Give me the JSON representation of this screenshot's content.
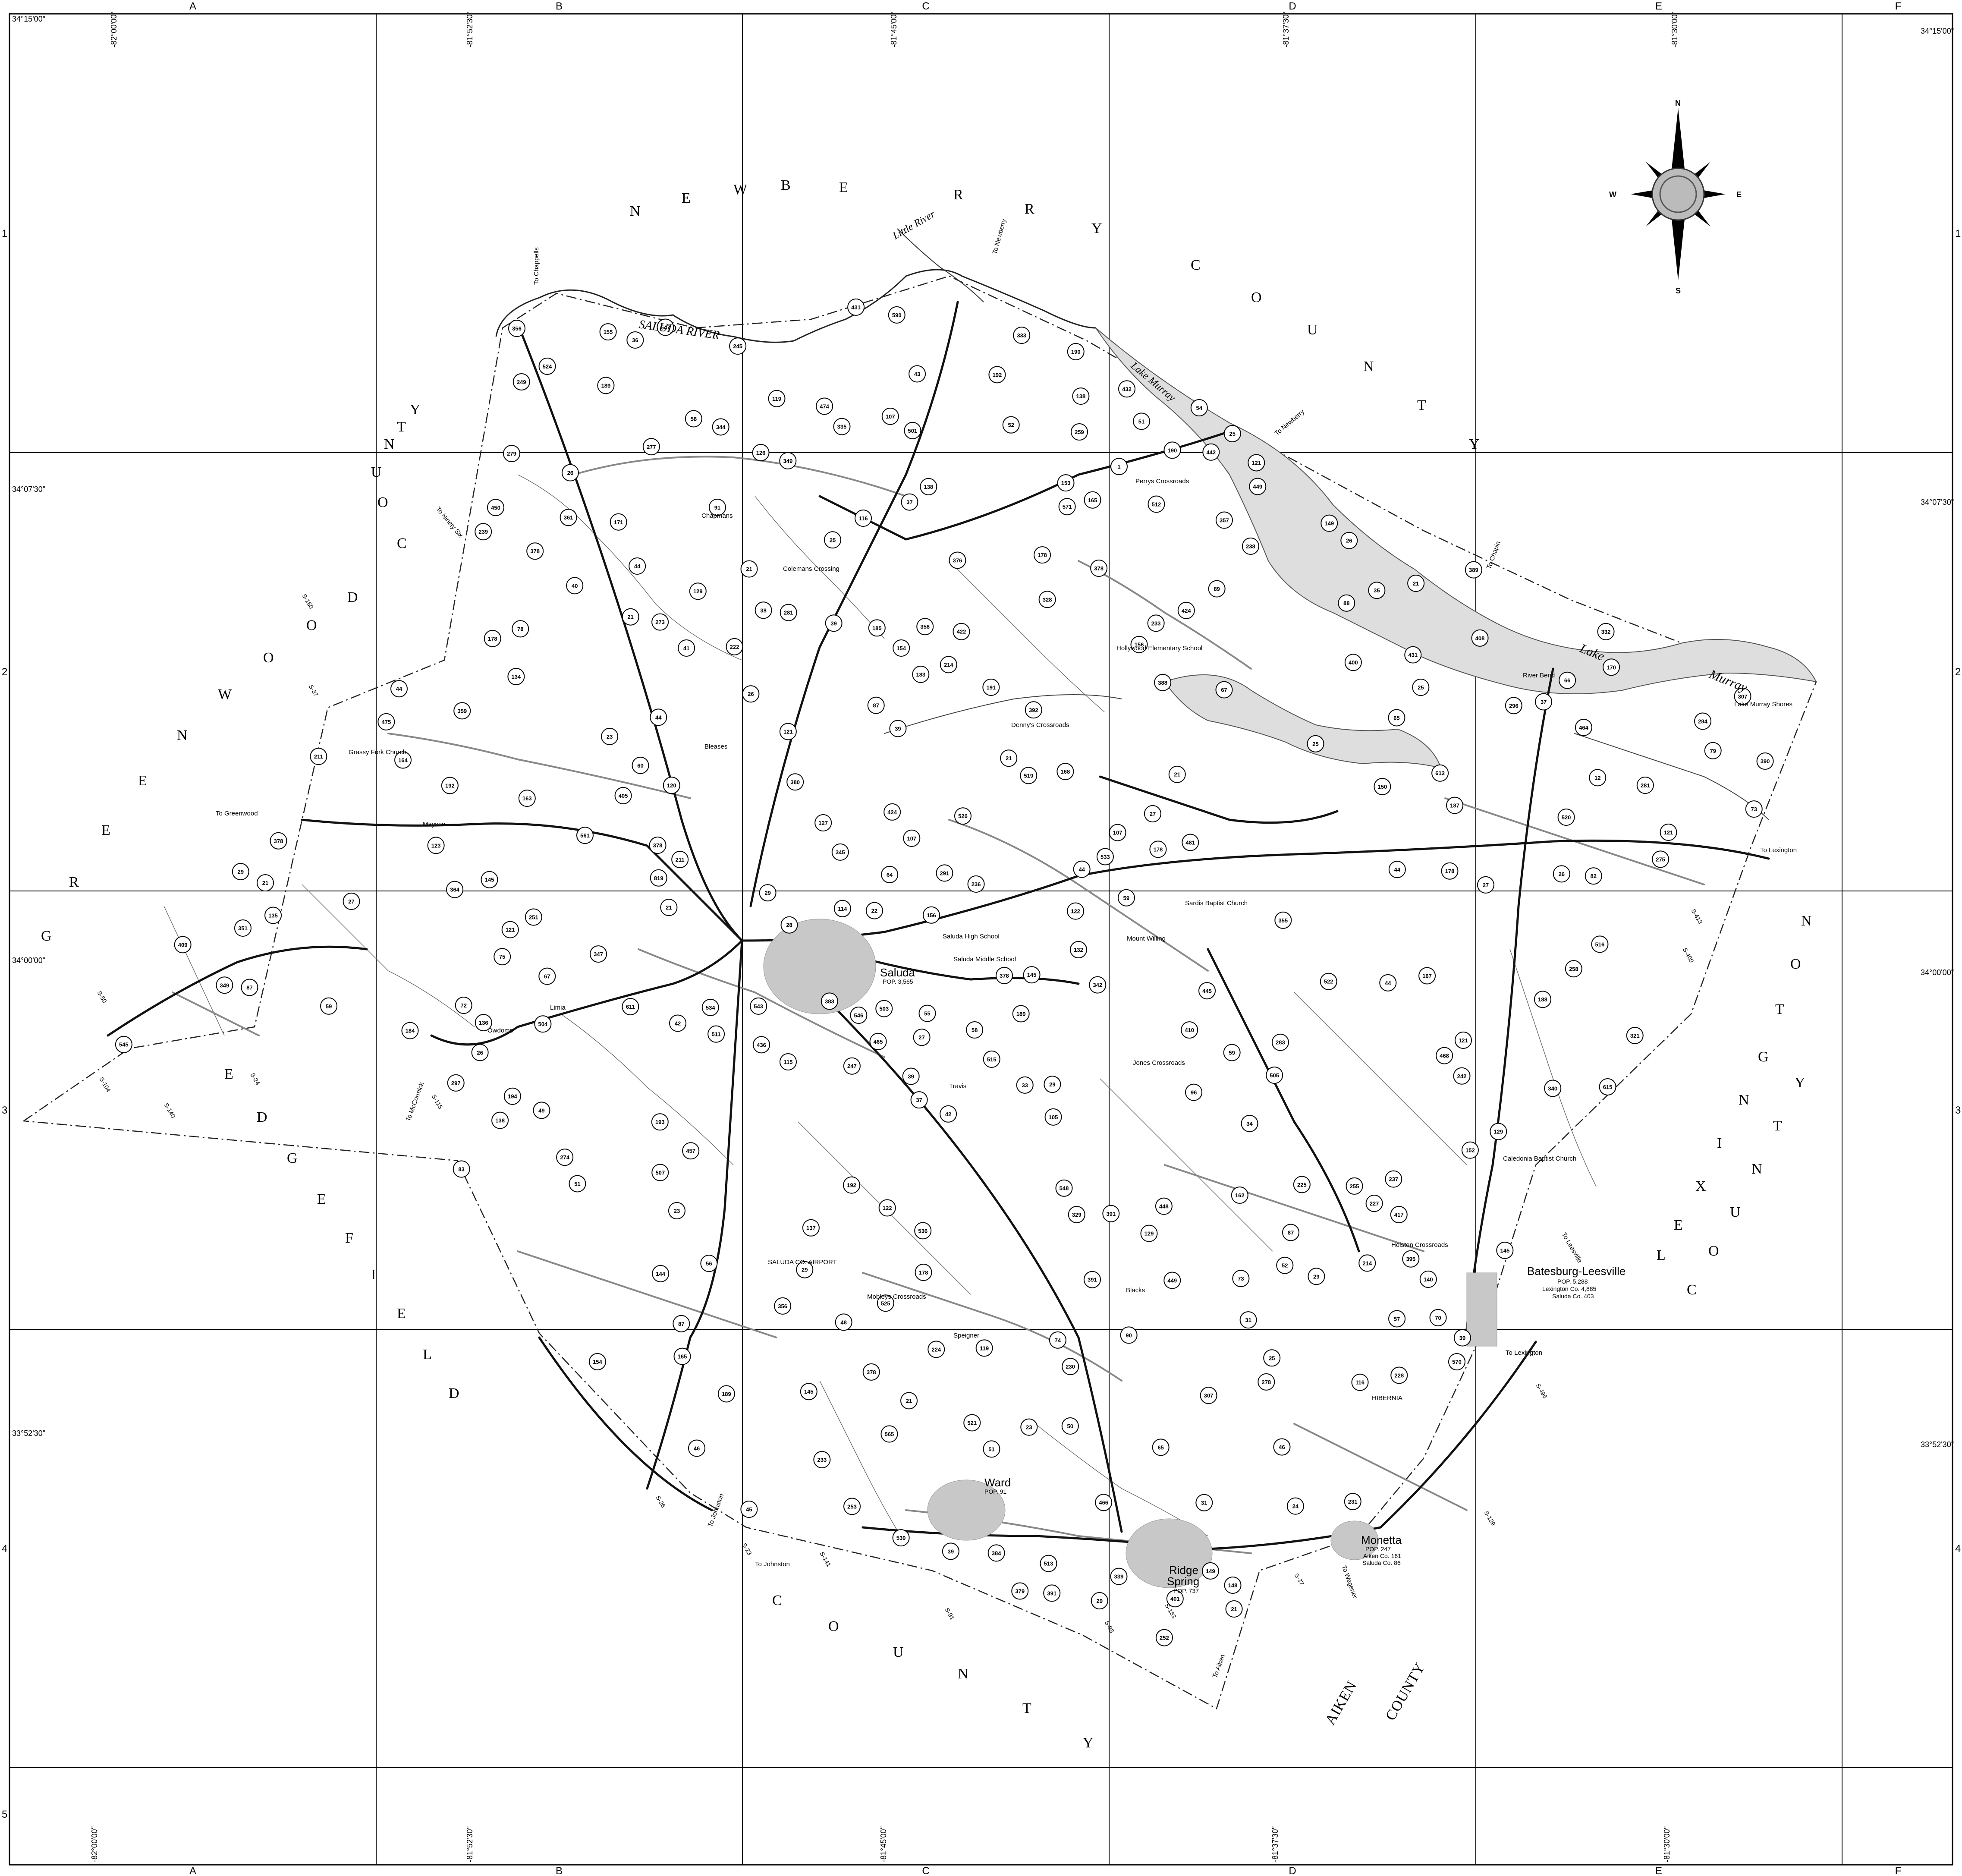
{
  "grid": {
    "columns": [
      "A",
      "B",
      "C",
      "D",
      "E",
      "F"
    ],
    "rows": [
      "1",
      "2",
      "3",
      "4",
      "5"
    ]
  },
  "coordinates": {
    "lat_top": "34°15'00\"",
    "lat_2": "34°07'30\"",
    "lat_3": "34°00'00\"",
    "lat_4": "33°52'30\"",
    "lon_1": "-82°00'00\"",
    "lon_2": "-81°52'30\"",
    "lon_3": "-81°45'00\"",
    "lon_4": "-81°37'30\"",
    "lon_5": "-81°30'00\""
  },
  "compass": {
    "n": "N",
    "s": "S",
    "e": "E",
    "w": "W"
  },
  "counties": {
    "newberry": [
      "N",
      "E",
      "W",
      "B",
      "E",
      "R",
      "R",
      "Y"
    ],
    "newberry2": [
      "C",
      "O",
      "U",
      "N",
      "T",
      "Y"
    ],
    "greenwood": [
      "G",
      "R",
      "E",
      "E",
      "N",
      "W",
      "O",
      "O",
      "D"
    ],
    "greenwood2": [
      "C",
      "O",
      "U",
      "N",
      "T",
      "Y"
    ],
    "edgefield": [
      "E",
      "D",
      "G",
      "E",
      "F",
      "I",
      "E",
      "L",
      "D"
    ],
    "edgefield2": [
      "C",
      "O",
      "U",
      "N",
      "T",
      "Y"
    ],
    "lexington": [
      "L",
      "E",
      "X",
      "I",
      "N",
      "G",
      "T",
      "O",
      "N"
    ],
    "lexington2": [
      "C",
      "O",
      "U",
      "N",
      "T",
      "Y"
    ],
    "aiken": "AIKEN",
    "aiken2": "COUNTY"
  },
  "water": {
    "saluda_river": "SALUDA RIVER",
    "little_river": "Little River",
    "lake_murray_1": "Lake Murray",
    "lake_murray_2": "Lake",
    "lake_murray_3": "Murray"
  },
  "towns": {
    "saluda": {
      "name": "Saluda",
      "pop": "POP. 3,565"
    },
    "batesburg": {
      "name": "Batesburg-Leesville",
      "pop": "POP. 5,288",
      "pop2": "Lexington Co. 4,885",
      "pop3": "Saluda Co. 403"
    },
    "ward": {
      "name": "Ward",
      "pop": "POP. 91"
    },
    "ridge_spring": {
      "name": "Ridge",
      "name2": "Spring",
      "pop": "POP. 737"
    },
    "monetta": {
      "name": "Monetta",
      "pop": "POP. 247",
      "pop2": "Aiken Co. 161",
      "pop3": "Saluda Co. 86"
    }
  },
  "places": [
    "Chapmans",
    "Colemans Crossing",
    "Perrys Crossroads",
    "Denny's Crossroads",
    "Bleases",
    "Mayson",
    "Grassy Fork Church",
    "Hollywood Elementary School",
    "River Bend",
    "Lake Murray Shores",
    "Mount Willing",
    "Sardis Baptist Church",
    "Saluda High School",
    "Saluda Middle School",
    "Limia",
    "Owdoms",
    "Travis",
    "Jones Crossroads",
    "Holston Crossroads",
    "Caledonia Baptist Church",
    "SALUDA CO. AIRPORT",
    "Mobleys Crossroads",
    "Speigner",
    "Blacks",
    "HIBERNIA"
  ],
  "destinations": [
    "To Chappells",
    "To Newberry",
    "To Newberry",
    "To Chapin",
    "To Ninety Six",
    "To Greenwood",
    "To McCormick",
    "To Johnston",
    "To Johnston",
    "To Lexington",
    "To Lexington",
    "To Leesville",
    "To Wagener",
    "To Aiken"
  ],
  "routes": [
    "39",
    "383",
    "44",
    "54",
    "358",
    "357",
    "145",
    "135",
    "115",
    "67",
    "39",
    "21",
    "120",
    "185",
    "533",
    "227",
    "335",
    "162",
    "79",
    "233",
    "114",
    "78",
    "255",
    "333",
    "405",
    "123",
    "31",
    "122",
    "253",
    "132",
    "170",
    "52",
    "31",
    "51",
    "43",
    "67",
    "359",
    "51",
    "126",
    "64",
    "48",
    "225",
    "163",
    "475",
    "127",
    "384",
    "236",
    "445",
    "82",
    "178",
    "65",
    "474",
    "481",
    "116",
    "156",
    "184",
    "155",
    "819",
    "615",
    "154",
    "543",
    "36",
    "247",
    "38",
    "245",
    "191",
    "273",
    "522",
    "83",
    "178",
    "171",
    "140",
    "49",
    "60",
    "33",
    "378",
    "58",
    "107",
    "12",
    "178",
    "152",
    "192",
    "116",
    "39",
    "136",
    "328",
    "329",
    "501",
    "431",
    "137",
    "513",
    "432",
    "27",
    "165",
    "73",
    "27",
    "211",
    "29",
    "546",
    "87",
    "431",
    "59",
    "87",
    "281",
    "395",
    "351",
    "26",
    "25",
    "29",
    "561",
    "26",
    "189",
    "105",
    "507",
    "344",
    "422",
    "156",
    "178",
    "231",
    "297",
    "1",
    "75",
    "349",
    "284",
    "224",
    "230",
    "612",
    "222",
    "23",
    "35",
    "144",
    "23",
    "392",
    "39",
    "34",
    "22",
    "91",
    "41",
    "239",
    "277",
    "238",
    "611",
    "512",
    "321",
    "448",
    "24",
    "23",
    "74",
    "45",
    "29",
    "249",
    "25",
    "149",
    "465",
    "25",
    "149",
    "189",
    "150",
    "26",
    "211",
    "349",
    "548",
    "291",
    "252",
    "148",
    "168",
    "340",
    "361",
    "449",
    "57",
    "449",
    "188",
    "178",
    "296",
    "283",
    "275",
    "27",
    "25",
    "87",
    "274",
    "378",
    "524",
    "44",
    "26",
    "59",
    "525",
    "87",
    "281",
    "192",
    "164",
    "39",
    "450",
    "122",
    "376",
    "401",
    "129",
    "121",
    "364",
    "547",
    "565",
    "391",
    "570",
    "72",
    "237",
    "59",
    "89",
    "73",
    "138",
    "214",
    "400",
    "88",
    "515",
    "516",
    "58",
    "50",
    "409",
    "408",
    "40",
    "242",
    "539",
    "214",
    "417",
    "228",
    "436",
    "46",
    "138",
    "332",
    "590",
    "391",
    "138",
    "378",
    "307",
    "189",
    "46",
    "424",
    "505",
    "25",
    "503",
    "55",
    "424",
    "378",
    "44",
    "468",
    "192",
    "26",
    "70",
    "90",
    "96",
    "379",
    "279",
    "154",
    "194",
    "44",
    "129",
    "145",
    "51",
    "391",
    "389",
    "442",
    "571",
    "183",
    "355",
    "44",
    "356",
    "145",
    "129",
    "56",
    "380",
    "145",
    "390",
    "121",
    "121",
    "464",
    "534",
    "134",
    "356",
    "44",
    "21",
    "345",
    "187",
    "107",
    "457",
    "42",
    "21",
    "21",
    "504",
    "153",
    "378",
    "42",
    "65",
    "342",
    "526",
    "278",
    "66",
    "511",
    "378",
    "52",
    "21",
    "21",
    "190",
    "521",
    "339",
    "190",
    "21",
    "28",
    "121",
    "37",
    "388",
    "347",
    "233",
    "37",
    "21",
    "119",
    "466",
    "119",
    "410",
    "520",
    "307",
    "519",
    "107",
    "545",
    "536",
    "121",
    "193",
    "165",
    "167",
    "258",
    "259",
    "29",
    "29",
    "251",
    "21",
    "29",
    "37",
    "27"
  ],
  "spurs": [
    "S-104",
    "S-50",
    "S-140",
    "S-24",
    "S-115",
    "S-37",
    "S-160",
    "S-413",
    "S-409",
    "S-496",
    "S-129",
    "S-37",
    "S-183",
    "S-93",
    "S-26",
    "S-23",
    "S-91",
    "S-141"
  ]
}
